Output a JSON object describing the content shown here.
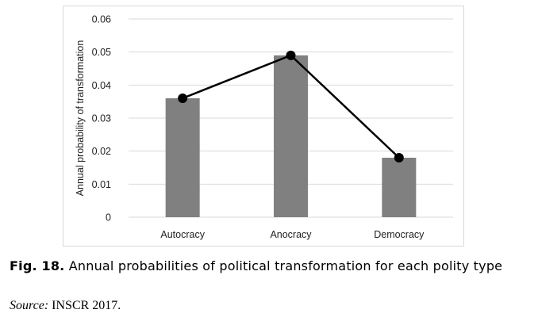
{
  "chart_data": {
    "type": "bar",
    "title": "",
    "xlabel": "",
    "ylabel": "Annual probability of transformation",
    "ylim": [
      0,
      0.06
    ],
    "yticks": [
      0,
      0.01,
      0.02,
      0.03,
      0.04,
      0.05,
      0.06
    ],
    "ytick_labels": [
      "0",
      "0.01",
      "0.02",
      "0.03",
      "0.04",
      "0.05",
      "0.06"
    ],
    "categories": [
      "Autocracy",
      "Anocracy",
      "Democracy"
    ],
    "series": [
      {
        "type": "bar",
        "values": [
          0.036,
          0.049,
          0.018
        ],
        "color": "#808080"
      },
      {
        "type": "line",
        "values": [
          0.036,
          0.049,
          0.018
        ],
        "color": "#000000",
        "marker": "circle"
      }
    ],
    "grid": true,
    "legend": "none"
  },
  "caption": {
    "label": "Fig. 18.",
    "text": "Annual probabilities of political transformation for each polity type"
  },
  "source": {
    "label": "Source:",
    "text": "INSCR 2017."
  }
}
